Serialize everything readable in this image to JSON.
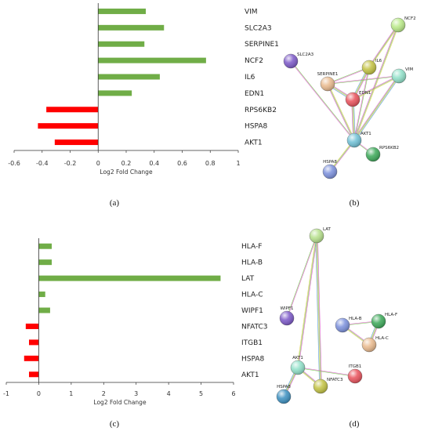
{
  "chart_data": [
    {
      "type": "bar",
      "orientation": "horizontal",
      "panel": "(a)",
      "categories": [
        "VIM",
        "SLC2A3",
        "SERPINE1",
        "NCF2",
        "IL6",
        "EDN1",
        "RPS6KB2",
        "HSPA8",
        "AKT1"
      ],
      "values": [
        0.34,
        0.47,
        0.33,
        0.77,
        0.44,
        0.24,
        -0.37,
        -0.43,
        -0.31
      ],
      "xlabel": "Log2 Fold Change",
      "xlim": [
        -0.6,
        1
      ],
      "xticks": [
        "-0.6",
        "-0.4",
        "-0.2",
        "0",
        "0.2",
        "0.4",
        "0.6",
        "0.8",
        "1"
      ],
      "colors": {
        "positive": "#70ad47",
        "negative": "#ff0000"
      },
      "grid": false
    },
    {
      "type": "bar",
      "orientation": "horizontal",
      "panel": "(c)",
      "categories": [
        "HLA-F",
        "HLA-B",
        "LAT",
        "HLA-C",
        "WIPF1",
        "NFATC3",
        "ITGB1",
        "HSPA8",
        "AKT1"
      ],
      "values": [
        0.4,
        0.4,
        5.6,
        0.2,
        0.35,
        -0.4,
        -0.3,
        -0.45,
        -0.3
      ],
      "xlabel": "Log2 Fold Change",
      "xlim": [
        -1,
        6
      ],
      "xticks": [
        "-1",
        "0",
        "1",
        "2",
        "3",
        "4",
        "5",
        "6"
      ],
      "colors": {
        "positive": "#70ad47",
        "negative": "#ff0000"
      },
      "grid": false
    }
  ],
  "networks": [
    {
      "panel": "(b)",
      "nodes": [
        {
          "name": "NCF2",
          "color": "#b8e986"
        },
        {
          "name": "SLC2A3",
          "color": "#7b57c8"
        },
        {
          "name": "IL6",
          "color": "#c2c240"
        },
        {
          "name": "VIM",
          "color": "#8fe0c8"
        },
        {
          "name": "SERPINE1",
          "color": "#e9b98c"
        },
        {
          "name": "EDN1",
          "color": "#e9505a"
        },
        {
          "name": "AKT1",
          "color": "#6ec0d6"
        },
        {
          "name": "RPS6KB2",
          "color": "#3aa857"
        },
        {
          "name": "HSPA8",
          "color": "#7a8fdc"
        }
      ],
      "edges": [
        [
          "AKT1",
          "SLC2A3"
        ],
        [
          "AKT1",
          "SERPINE1"
        ],
        [
          "AKT1",
          "EDN1"
        ],
        [
          "AKT1",
          "IL6"
        ],
        [
          "AKT1",
          "NCF2"
        ],
        [
          "AKT1",
          "VIM"
        ],
        [
          "AKT1",
          "RPS6KB2"
        ],
        [
          "AKT1",
          "HSPA8"
        ],
        [
          "IL6",
          "EDN1"
        ],
        [
          "IL6",
          "SERPINE1"
        ],
        [
          "IL6",
          "NCF2"
        ],
        [
          "SERPINE1",
          "EDN1"
        ],
        [
          "SERPINE1",
          "VIM"
        ],
        [
          "EDN1",
          "VIM"
        ]
      ]
    },
    {
      "panel": "(d)",
      "nodes": [
        {
          "name": "LAT",
          "color": "#b5e08a"
        },
        {
          "name": "WIPF1",
          "color": "#7b57c8"
        },
        {
          "name": "HLA-B",
          "color": "#7a8fdc"
        },
        {
          "name": "HLA-F",
          "color": "#3aa857"
        },
        {
          "name": "HLA-C",
          "color": "#e9b98c"
        },
        {
          "name": "AKT1",
          "color": "#8fe0c8"
        },
        {
          "name": "ITGB1",
          "color": "#e9505a"
        },
        {
          "name": "NFATC3",
          "color": "#c2c240"
        },
        {
          "name": "HSPA8",
          "color": "#3a8fc0"
        }
      ],
      "edges": [
        [
          "LAT",
          "WIPF1"
        ],
        [
          "LAT",
          "AKT1"
        ],
        [
          "LAT",
          "NFATC3"
        ],
        [
          "HLA-B",
          "HLA-F"
        ],
        [
          "HLA-B",
          "HLA-C"
        ],
        [
          "HLA-F",
          "HLA-C"
        ],
        [
          "AKT1",
          "ITGB1"
        ],
        [
          "AKT1",
          "NFATC3"
        ],
        [
          "AKT1",
          "HSPA8"
        ]
      ]
    }
  ]
}
